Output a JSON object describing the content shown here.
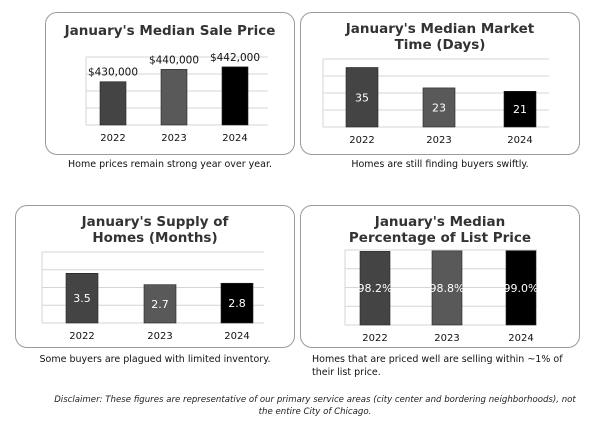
{
  "chart_data": [
    {
      "type": "bar",
      "title": "January's Median Sale Price",
      "categories": [
        "2022",
        "2023",
        "2024"
      ],
      "values": [
        430000,
        440000,
        442000
      ],
      "data_labels": [
        "$430,000",
        "$440,000",
        "$442,000"
      ],
      "label_position": "above",
      "ylim": [
        395000,
        450000
      ],
      "grid": true,
      "bar_colors": [
        "#444444",
        "#595959",
        "#000000"
      ],
      "caption": "Home prices remain strong year over year."
    },
    {
      "type": "bar",
      "title": "January's Median Market Time (Days)",
      "categories": [
        "2022",
        "2023",
        "2024"
      ],
      "values": [
        35,
        23,
        21
      ],
      "data_labels": [
        "35",
        "23",
        "21"
      ],
      "label_position": "inside",
      "ylim": [
        0,
        40
      ],
      "grid": true,
      "bar_colors": [
        "#444444",
        "#595959",
        "#000000"
      ],
      "caption": "Homes are still finding buyers swiftly."
    },
    {
      "type": "bar",
      "title": "January's Supply of Homes (Months)",
      "categories": [
        "2022",
        "2023",
        "2024"
      ],
      "values": [
        3.5,
        2.7,
        2.8
      ],
      "data_labels": [
        "3.5",
        "2.7",
        "2.8"
      ],
      "label_position": "inside",
      "ylim": [
        0,
        5
      ],
      "grid": true,
      "bar_colors": [
        "#444444",
        "#595959",
        "#000000"
      ],
      "caption": "Some buyers are plagued with limited inventory."
    },
    {
      "type": "bar",
      "title": "January's Median Percentage of List Price",
      "categories": [
        "2022",
        "2023",
        "2024"
      ],
      "values": [
        98.2,
        98.8,
        99.0
      ],
      "data_labels": [
        "98.2%",
        "98.8%",
        "99.0%"
      ],
      "label_position": "inside",
      "ylim": [
        0,
        100
      ],
      "grid": true,
      "bar_colors": [
        "#444444",
        "#595959",
        "#000000"
      ],
      "caption": "Homes that are priced well are selling within ~1% of their list price."
    }
  ],
  "disclaimer": "Disclaimer: These figures are representative of our primary service areas (city center and bordering neighborhoods), not the entire City of Chicago."
}
